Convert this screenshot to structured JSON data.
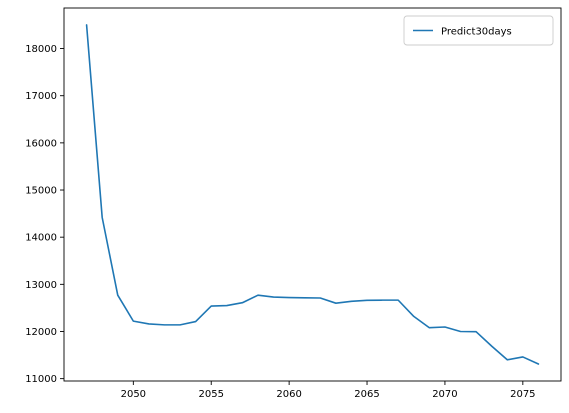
{
  "chart_data": {
    "type": "line",
    "series": [
      {
        "name": "Predict30days",
        "color": "#1f77b4",
        "x": [
          2047,
          2048,
          2049,
          2050,
          2051,
          2052,
          2053,
          2054,
          2055,
          2056,
          2057,
          2058,
          2059,
          2060,
          2061,
          2062,
          2063,
          2064,
          2065,
          2066,
          2067,
          2068,
          2069,
          2070,
          2071,
          2072,
          2073,
          2074,
          2075,
          2076
        ],
        "values": [
          18500,
          14420,
          12770,
          12220,
          12160,
          12140,
          12140,
          12210,
          12540,
          12550,
          12610,
          12770,
          12730,
          12720,
          12715,
          12710,
          12600,
          12640,
          12660,
          12665,
          12665,
          12320,
          12080,
          12095,
          12000,
          11995,
          11690,
          11400,
          11460,
          11310
        ]
      }
    ],
    "xlim": [
      2045.55,
      2077.45
    ],
    "ylim": [
      10950,
      18860
    ],
    "xticks": [
      2050,
      2055,
      2060,
      2065,
      2070,
      2075
    ],
    "yticks": [
      11000,
      12000,
      13000,
      14000,
      15000,
      16000,
      17000,
      18000
    ],
    "title": "",
    "xlabel": "",
    "ylabel": "",
    "legend_position": "top-right",
    "grid": false
  }
}
